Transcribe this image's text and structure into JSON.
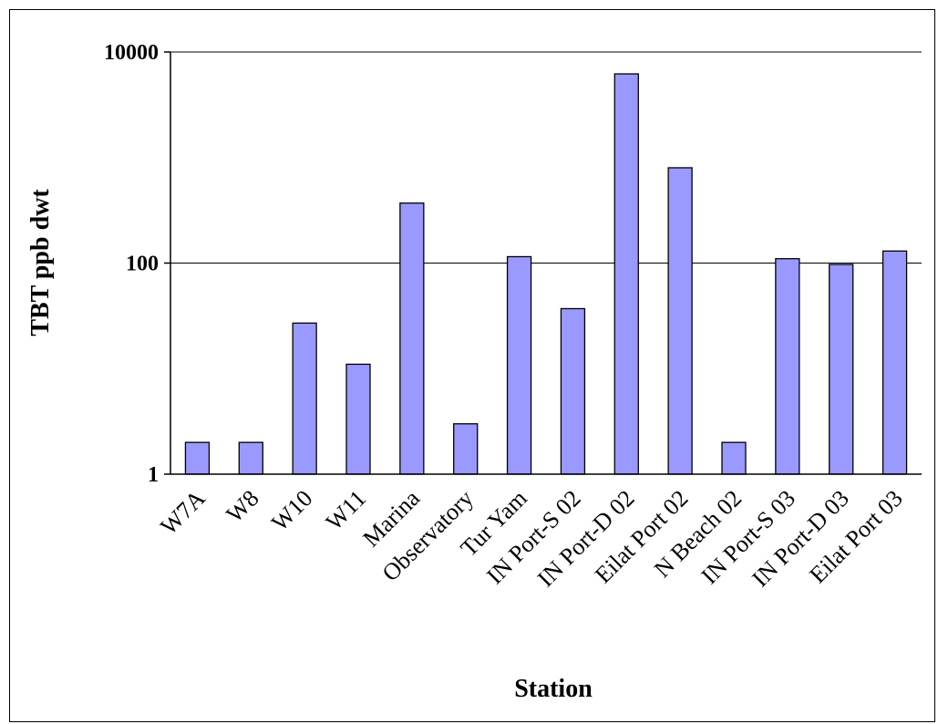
{
  "chart_data": {
    "type": "bar",
    "xlabel": "Station",
    "ylabel": "TBT ppb dwt",
    "yscale": "log",
    "ylim": [
      1,
      10000
    ],
    "yticks": [
      {
        "value": 1,
        "label": "1"
      },
      {
        "value": 100,
        "label": "100"
      },
      {
        "value": 10000,
        "label": "10000"
      }
    ],
    "grid": true,
    "bar_color": "#9999ff",
    "categories": [
      "W7A",
      "W8",
      "W10",
      "W11",
      "Marina",
      "Observatory",
      "Tur Yam",
      "IN Port-S 02",
      "IN Port-D 02",
      "Eilat Port 02",
      "N Beach 02",
      "IN Port-S 03",
      "IN Port-D 03",
      "Eilat Port 03"
    ],
    "values": [
      2,
      2,
      27,
      11,
      370,
      3,
      115,
      37,
      6200,
      800,
      2,
      110,
      97,
      130
    ]
  }
}
